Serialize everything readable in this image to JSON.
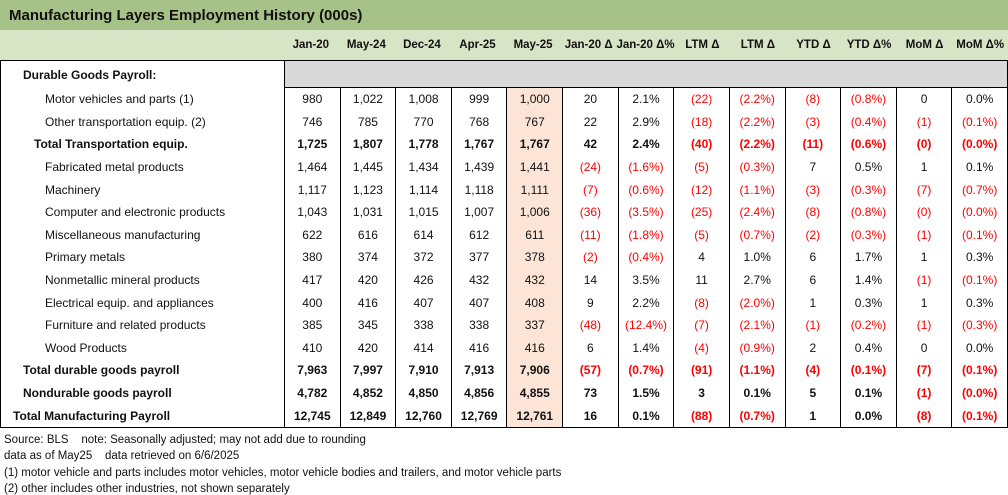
{
  "title": "Manufacturing Layers Employment History (000s)",
  "colors": {
    "title_bg": "#A7C289",
    "header_bg": "#D8E4C6",
    "section_bg": "#D9D9D9",
    "highlight_bg": "#FCE4D6",
    "negative_text": "#FF0000"
  },
  "table": {
    "columns": [
      "Jan-20",
      "May-24",
      "Dec-24",
      "Apr-25",
      "May-25",
      "Jan-20 Δ",
      "Jan-20 Δ%",
      "LTM Δ",
      "LTM Δ",
      "YTD Δ",
      "YTD Δ%",
      "MoM Δ",
      "MoM Δ%"
    ],
    "highlight_column_index": 4,
    "highlight_column": "May-25",
    "rows": [
      {
        "label": "Durable Goods Payroll:",
        "type": "section",
        "level": 2,
        "values": []
      },
      {
        "label": "Motor vehicles and parts (1)",
        "type": "item",
        "level": 4,
        "values": [
          "980",
          "1,022",
          "1,008",
          "999",
          "1,000",
          "20",
          "2.1%",
          "(22)",
          "(2.2%)",
          "(8)",
          "(0.8%)",
          "0",
          "0.0%"
        ]
      },
      {
        "label": "Other transportation equip. (2)",
        "type": "item",
        "level": 4,
        "values": [
          "746",
          "785",
          "770",
          "768",
          "767",
          "22",
          "2.9%",
          "(18)",
          "(2.2%)",
          "(3)",
          "(0.4%)",
          "(1)",
          "(0.1%)"
        ]
      },
      {
        "label": "Total Transportation equip.",
        "type": "subtotal",
        "level": 3,
        "values": [
          "1,725",
          "1,807",
          "1,778",
          "1,767",
          "1,767",
          "42",
          "2.4%",
          "(40)",
          "(2.2%)",
          "(11)",
          "(0.6%)",
          "(0)",
          "(0.0%)"
        ]
      },
      {
        "label": "Fabricated metal products",
        "type": "item",
        "level": 4,
        "values": [
          "1,464",
          "1,445",
          "1,434",
          "1,439",
          "1,441",
          "(24)",
          "(1.6%)",
          "(5)",
          "(0.3%)",
          "7",
          "0.5%",
          "1",
          "0.1%"
        ]
      },
      {
        "label": "Machinery",
        "type": "item",
        "level": 4,
        "values": [
          "1,117",
          "1,123",
          "1,114",
          "1,118",
          "1,111",
          "(7)",
          "(0.6%)",
          "(12)",
          "(1.1%)",
          "(3)",
          "(0.3%)",
          "(7)",
          "(0.7%)"
        ]
      },
      {
        "label": "Computer and electronic products",
        "type": "item",
        "level": 4,
        "values": [
          "1,043",
          "1,031",
          "1,015",
          "1,007",
          "1,006",
          "(36)",
          "(3.5%)",
          "(25)",
          "(2.4%)",
          "(8)",
          "(0.8%)",
          "(0)",
          "(0.0%)"
        ]
      },
      {
        "label": "Miscellaneous manufacturing",
        "type": "item",
        "level": 4,
        "values": [
          "622",
          "616",
          "614",
          "612",
          "611",
          "(11)",
          "(1.8%)",
          "(5)",
          "(0.7%)",
          "(2)",
          "(0.3%)",
          "(1)",
          "(0.1%)"
        ]
      },
      {
        "label": "Primary metals",
        "type": "item",
        "level": 4,
        "values": [
          "380",
          "374",
          "372",
          "377",
          "378",
          "(2)",
          "(0.4%)",
          "4",
          "1.0%",
          "6",
          "1.7%",
          "1",
          "0.3%"
        ]
      },
      {
        "label": "Nonmetallic mineral products",
        "type": "item",
        "level": 4,
        "values": [
          "417",
          "420",
          "426",
          "432",
          "432",
          "14",
          "3.5%",
          "11",
          "2.7%",
          "6",
          "1.4%",
          "(1)",
          "(0.1%)"
        ]
      },
      {
        "label": "Electrical equip. and appliances",
        "type": "item",
        "level": 4,
        "values": [
          "400",
          "416",
          "407",
          "407",
          "408",
          "9",
          "2.2%",
          "(8)",
          "(2.0%)",
          "1",
          "0.3%",
          "1",
          "0.3%"
        ]
      },
      {
        "label": "Furniture and related products",
        "type": "item",
        "level": 4,
        "values": [
          "385",
          "345",
          "338",
          "338",
          "337",
          "(48)",
          "(12.4%)",
          "(7)",
          "(2.1%)",
          "(1)",
          "(0.2%)",
          "(1)",
          "(0.3%)"
        ]
      },
      {
        "label": "Wood Products",
        "type": "item",
        "level": 4,
        "values": [
          "410",
          "420",
          "414",
          "416",
          "416",
          "6",
          "1.4%",
          "(4)",
          "(0.9%)",
          "2",
          "0.4%",
          "0",
          "0.0%"
        ]
      },
      {
        "label": "Total durable goods payroll",
        "type": "subtotal",
        "level": 2,
        "values": [
          "7,963",
          "7,997",
          "7,910",
          "7,913",
          "7,906",
          "(57)",
          "(0.7%)",
          "(91)",
          "(1.1%)",
          "(4)",
          "(0.1%)",
          "(7)",
          "(0.1%)"
        ]
      },
      {
        "label": "Nondurable goods payroll",
        "type": "subtotal",
        "level": 2,
        "values": [
          "4,782",
          "4,852",
          "4,850",
          "4,856",
          "4,855",
          "73",
          "1.5%",
          "3",
          "0.1%",
          "5",
          "0.1%",
          "(1)",
          "(0.0%)"
        ]
      },
      {
        "label": "Total Manufacturing Payroll",
        "type": "total",
        "level": 1,
        "values": [
          "12,745",
          "12,849",
          "12,760",
          "12,769",
          "12,761",
          "16",
          "0.1%",
          "(88)",
          "(0.7%)",
          "1",
          "0.0%",
          "(8)",
          "(0.1%)"
        ]
      }
    ]
  },
  "footer": {
    "lines": [
      "Source: BLS    note: Seasonally adjusted; may not add due to rounding",
      "data as of May25    data retrieved on 6/6/2025",
      "(1) motor vehicle and parts includes motor vehicles, motor vehicle bodies and trailers, and motor vehicle parts",
      "(2) other includes other industries, not shown separately"
    ]
  }
}
